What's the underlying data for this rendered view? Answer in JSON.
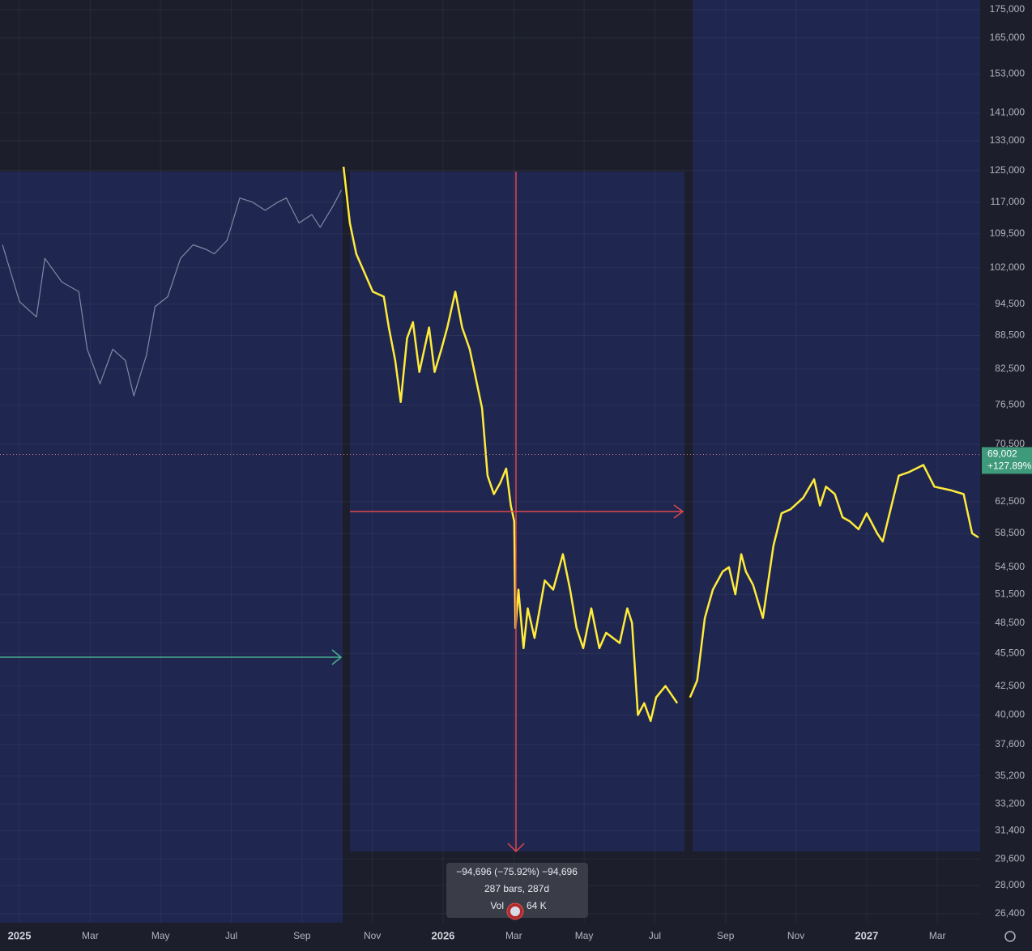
{
  "chart_data": {
    "type": "line",
    "log_scale": true,
    "grid": true,
    "xlim": [
      2024.954,
      2027.268
    ],
    "xticks": [
      {
        "value": 2025,
        "label": "2025"
      },
      {
        "value": 2025.167,
        "label": "Mar"
      },
      {
        "value": 2025.333,
        "label": "May"
      },
      {
        "value": 2025.5,
        "label": "Jul"
      },
      {
        "value": 2025.667,
        "label": "Sep"
      },
      {
        "value": 2025.833,
        "label": "Nov"
      },
      {
        "value": 2026,
        "label": "2026"
      },
      {
        "value": 2026.167,
        "label": "Mar"
      },
      {
        "value": 2026.333,
        "label": "May"
      },
      {
        "value": 2026.5,
        "label": "Jul"
      },
      {
        "value": 2026.667,
        "label": "Sep"
      },
      {
        "value": 2026.833,
        "label": "Nov"
      },
      {
        "value": 2027,
        "label": "2027"
      },
      {
        "value": 2027.167,
        "label": "Mar"
      }
    ],
    "ylim": [
      25900,
      178600
    ],
    "yticks": [
      {
        "value": 175000,
        "label": "175,000"
      },
      {
        "value": 165000,
        "label": "165,000"
      },
      {
        "value": 153000,
        "label": "153,000"
      },
      {
        "value": 141000,
        "label": "141,000"
      },
      {
        "value": 133000,
        "label": "133,000"
      },
      {
        "value": 125000,
        "label": "125,000"
      },
      {
        "value": 117000,
        "label": "117,000"
      },
      {
        "value": 109500,
        "label": "109,500"
      },
      {
        "value": 102000,
        "label": "102,000"
      },
      {
        "value": 94500,
        "label": "94,500"
      },
      {
        "value": 88500,
        "label": "88,500"
      },
      {
        "value": 82500,
        "label": "82,500"
      },
      {
        "value": 76500,
        "label": "76,500"
      },
      {
        "value": 70500,
        "label": "70,500"
      },
      {
        "value": 62500,
        "label": "62,500"
      },
      {
        "value": 58500,
        "label": "58,500"
      },
      {
        "value": 54500,
        "label": "54,500"
      },
      {
        "value": 51500,
        "label": "51,500"
      },
      {
        "value": 48500,
        "label": "48,500"
      },
      {
        "value": 45500,
        "label": "45,500"
      },
      {
        "value": 42500,
        "label": "42,500"
      },
      {
        "value": 40000,
        "label": "40,000"
      },
      {
        "value": 37600,
        "label": "37,600"
      },
      {
        "value": 35200,
        "label": "35,200"
      },
      {
        "value": 33200,
        "label": "33,200"
      },
      {
        "value": 31400,
        "label": "31,400"
      },
      {
        "value": 29600,
        "label": "29,600"
      },
      {
        "value": 28000,
        "label": "28,000"
      },
      {
        "value": 26400,
        "label": "26,400"
      }
    ],
    "series": [
      {
        "color": "#7f8aa3",
        "x": [
          2024.96,
          2025.0,
          2025.04,
          2025.06,
          2025.1,
          2025.14,
          2025.16,
          2025.19,
          2025.22,
          2025.25,
          2025.27,
          2025.3,
          2025.32,
          2025.35,
          2025.38,
          2025.41,
          2025.44,
          2025.46,
          2025.49,
          2025.52,
          2025.55,
          2025.58,
          2025.61,
          2025.63,
          2025.66,
          2025.69,
          2025.71,
          2025.74,
          2025.76
        ],
        "values": [
          107000,
          95000,
          92000,
          104000,
          99000,
          97000,
          86000,
          80000,
          86000,
          84000,
          78000,
          85000,
          94000,
          96000,
          104000,
          107000,
          106000,
          105000,
          108000,
          118000,
          117000,
          115000,
          117000,
          118000,
          112000,
          114000,
          111000,
          116000,
          120000
        ]
      },
      {
        "color": "#ffeb3b",
        "x": [
          2025.765,
          2025.78,
          2025.795,
          2025.834,
          2025.86,
          2025.872,
          2025.887,
          2025.9,
          2025.915,
          2025.929,
          2025.944,
          2025.967,
          2025.98,
          2025.996,
          2026.01,
          2026.029,
          2026.045,
          2026.063,
          2026.08,
          2026.092,
          2026.105,
          2026.12,
          2026.135,
          2026.149,
          2026.16,
          2026.168,
          2026.171,
          2026.178,
          2026.19,
          2026.2,
          2026.216,
          2026.24,
          2026.26,
          2026.283,
          2026.3,
          2026.315,
          2026.331,
          2026.35,
          2026.369,
          2026.385,
          2026.417,
          2026.435,
          2026.446,
          2026.46,
          2026.475,
          2026.49,
          2026.503,
          2026.525,
          2026.553,
          null,
          2026.583,
          2026.6,
          2026.618,
          2026.637,
          2026.66,
          2026.675,
          2026.69,
          2026.704,
          2026.715,
          2026.732,
          2026.755,
          2026.78,
          2026.799,
          2026.82,
          2026.85,
          2026.876,
          2026.89,
          2026.904,
          2026.925,
          2026.943,
          2026.96,
          2026.981,
          2027.0,
          2027.025,
          2027.038,
          2027.076,
          2027.1,
          2027.134,
          2027.16,
          2027.2,
          2027.229,
          2027.249,
          2027.264
        ],
        "values": [
          126000,
          112000,
          105000,
          97000,
          96000,
          90000,
          84000,
          77000,
          88000,
          91000,
          82000,
          90000,
          82000,
          86000,
          90000,
          97000,
          90000,
          86000,
          80000,
          76000,
          66000,
          63500,
          65000,
          67000,
          62000,
          60000,
          48000,
          52000,
          46000,
          50000,
          47000,
          53000,
          52000,
          56000,
          52000,
          48000,
          46000,
          50000,
          46000,
          47500,
          46500,
          50000,
          48500,
          40000,
          41000,
          39500,
          41500,
          42500,
          41000,
          null,
          41500,
          43000,
          49000,
          52000,
          54000,
          54500,
          51500,
          56000,
          54000,
          52500,
          49000,
          57000,
          61000,
          61500,
          63000,
          65500,
          62000,
          64500,
          63500,
          60500,
          60000,
          59000,
          61000,
          58500,
          57500,
          66000,
          66500,
          67500,
          64500,
          64000,
          63500,
          58500,
          58000
        ]
      }
    ],
    "last_price": {
      "value": 69002,
      "label": "69,002"
    },
    "change_label": "+127.89%",
    "measure_tooltip": {
      "line1": "−94,696 (−75.92%) −94,696",
      "line2": "287 bars, 287d",
      "vol_label": "Vol",
      "vol_value": "64 K"
    }
  }
}
